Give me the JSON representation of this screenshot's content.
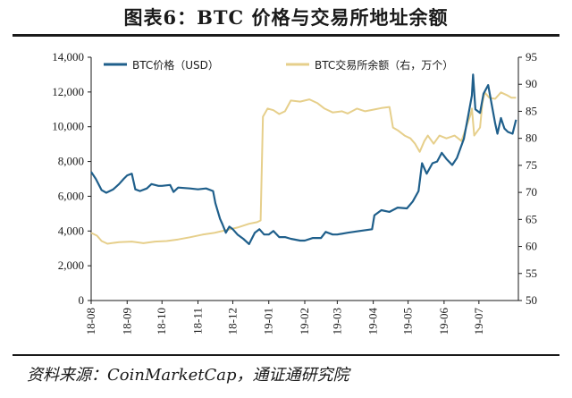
{
  "title": "图表6：BTC 价格与交易所地址余额",
  "source": "资料来源：CoinMarketCap，通证通研究院",
  "chart_data": {
    "type": "line",
    "x_categories": [
      "18-08",
      "18-09",
      "18-10",
      "18-11",
      "18-12",
      "19-01",
      "19-02",
      "19-03",
      "19-04",
      "19-05",
      "19-06",
      "19-07"
    ],
    "y_left": {
      "ylim": [
        0,
        14000
      ],
      "ticks": [
        0,
        2000,
        4000,
        6000,
        8000,
        10000,
        12000,
        14000
      ],
      "tick_labels": [
        "0",
        "2,000",
        "4,000",
        "6,000",
        "8,000",
        "10,000",
        "12,000",
        "14,000"
      ]
    },
    "y_right": {
      "ylim": [
        50,
        95
      ],
      "ticks": [
        50,
        55,
        60,
        65,
        70,
        75,
        80,
        85,
        90,
        95
      ],
      "tick_labels": [
        "50",
        "55",
        "60",
        "65",
        "70",
        "75",
        "80",
        "85",
        "90",
        "95"
      ]
    },
    "grid": false,
    "legend_position": "top",
    "series": [
      {
        "name": "BTC价格（USD）",
        "axis": "left",
        "color": "#1f5f8b",
        "points": [
          [
            "2018-08-01",
            7400
          ],
          [
            "2018-08-05",
            7000
          ],
          [
            "2018-08-10",
            6350
          ],
          [
            "2018-08-14",
            6200
          ],
          [
            "2018-08-20",
            6400
          ],
          [
            "2018-08-25",
            6700
          ],
          [
            "2018-08-29",
            7000
          ],
          [
            "2018-09-01",
            7200
          ],
          [
            "2018-09-05",
            7300
          ],
          [
            "2018-09-08",
            6400
          ],
          [
            "2018-09-12",
            6300
          ],
          [
            "2018-09-18",
            6450
          ],
          [
            "2018-09-22",
            6700
          ],
          [
            "2018-09-28",
            6600
          ],
          [
            "2018-10-01",
            6600
          ],
          [
            "2018-10-08",
            6650
          ],
          [
            "2018-10-11",
            6250
          ],
          [
            "2018-10-15",
            6500
          ],
          [
            "2018-10-25",
            6450
          ],
          [
            "2018-11-01",
            6400
          ],
          [
            "2018-11-08",
            6450
          ],
          [
            "2018-11-14",
            6300
          ],
          [
            "2018-11-16",
            5600
          ],
          [
            "2018-11-20",
            4700
          ],
          [
            "2018-11-22",
            4400
          ],
          [
            "2018-11-25",
            3900
          ],
          [
            "2018-11-28",
            4250
          ],
          [
            "2018-12-01",
            4100
          ],
          [
            "2018-12-05",
            3800
          ],
          [
            "2018-12-10",
            3550
          ],
          [
            "2018-12-15",
            3250
          ],
          [
            "2018-12-20",
            3900
          ],
          [
            "2018-12-24",
            4100
          ],
          [
            "2018-12-28",
            3800
          ],
          [
            "2019-01-01",
            3800
          ],
          [
            "2019-01-05",
            4000
          ],
          [
            "2019-01-10",
            3650
          ],
          [
            "2019-01-15",
            3650
          ],
          [
            "2019-01-20",
            3550
          ],
          [
            "2019-01-28",
            3450
          ],
          [
            "2019-02-01",
            3450
          ],
          [
            "2019-02-08",
            3600
          ],
          [
            "2019-02-15",
            3600
          ],
          [
            "2019-02-19",
            3950
          ],
          [
            "2019-02-25",
            3800
          ],
          [
            "2019-03-01",
            3800
          ],
          [
            "2019-03-10",
            3900
          ],
          [
            "2019-03-20",
            4000
          ],
          [
            "2019-03-31",
            4100
          ],
          [
            "2019-04-02",
            4900
          ],
          [
            "2019-04-08",
            5200
          ],
          [
            "2019-04-15",
            5100
          ],
          [
            "2019-04-22",
            5350
          ],
          [
            "2019-04-30",
            5300
          ],
          [
            "2019-05-05",
            5700
          ],
          [
            "2019-05-10",
            6300
          ],
          [
            "2019-05-13",
            7900
          ],
          [
            "2019-05-17",
            7300
          ],
          [
            "2019-05-22",
            7900
          ],
          [
            "2019-05-26",
            8000
          ],
          [
            "2019-05-30",
            8500
          ],
          [
            "2019-06-03",
            8150
          ],
          [
            "2019-06-08",
            7800
          ],
          [
            "2019-06-12",
            8200
          ],
          [
            "2019-06-18",
            9300
          ],
          [
            "2019-06-22",
            10700
          ],
          [
            "2019-06-25",
            11800
          ],
          [
            "2019-06-26",
            13000
          ],
          [
            "2019-06-28",
            11000
          ],
          [
            "2019-07-02",
            10800
          ],
          [
            "2019-07-05",
            11900
          ],
          [
            "2019-07-09",
            12400
          ],
          [
            "2019-07-12",
            11300
          ],
          [
            "2019-07-15",
            10200
          ],
          [
            "2019-07-17",
            9600
          ],
          [
            "2019-07-20",
            10500
          ],
          [
            "2019-07-23",
            9900
          ],
          [
            "2019-07-26",
            9700
          ],
          [
            "2019-07-30",
            9600
          ],
          [
            "2019-08-02",
            10400
          ]
        ]
      },
      {
        "name": "BTC交易所余额（右，万个）",
        "axis": "right",
        "color": "#e6cf8b",
        "points": [
          [
            "2018-08-01",
            62.5
          ],
          [
            "2018-08-06",
            62.0
          ],
          [
            "2018-08-10",
            61.0
          ],
          [
            "2018-08-15",
            60.5
          ],
          [
            "2018-08-25",
            60.8
          ],
          [
            "2018-09-05",
            60.9
          ],
          [
            "2018-09-15",
            60.6
          ],
          [
            "2018-09-25",
            60.9
          ],
          [
            "2018-10-05",
            61.0
          ],
          [
            "2018-10-15",
            61.3
          ],
          [
            "2018-10-25",
            61.7
          ],
          [
            "2018-11-05",
            62.2
          ],
          [
            "2018-11-15",
            62.5
          ],
          [
            "2018-11-25",
            63.0
          ],
          [
            "2018-12-05",
            63.5
          ],
          [
            "2018-12-15",
            64.2
          ],
          [
            "2018-12-22",
            64.5
          ],
          [
            "2018-12-25",
            64.8
          ],
          [
            "2018-12-27",
            84.0
          ],
          [
            "2018-12-31",
            85.5
          ],
          [
            "2019-01-05",
            85.2
          ],
          [
            "2019-01-10",
            84.5
          ],
          [
            "2019-01-15",
            85.0
          ],
          [
            "2019-01-20",
            87.0
          ],
          [
            "2019-01-28",
            86.8
          ],
          [
            "2019-02-05",
            87.2
          ],
          [
            "2019-02-12",
            86.5
          ],
          [
            "2019-02-18",
            85.5
          ],
          [
            "2019-02-25",
            84.8
          ],
          [
            "2019-03-05",
            85.0
          ],
          [
            "2019-03-10",
            84.6
          ],
          [
            "2019-03-18",
            85.5
          ],
          [
            "2019-03-25",
            85.0
          ],
          [
            "2019-04-01",
            85.3
          ],
          [
            "2019-04-08",
            85.6
          ],
          [
            "2019-04-15",
            85.8
          ],
          [
            "2019-04-18",
            82.0
          ],
          [
            "2019-04-22",
            81.5
          ],
          [
            "2019-04-28",
            80.5
          ],
          [
            "2019-05-03",
            80.0
          ],
          [
            "2019-05-07",
            79.0
          ],
          [
            "2019-05-11",
            77.5
          ],
          [
            "2019-05-15",
            79.5
          ],
          [
            "2019-05-18",
            80.5
          ],
          [
            "2019-05-23",
            79.0
          ],
          [
            "2019-05-28",
            80.5
          ],
          [
            "2019-06-03",
            80.0
          ],
          [
            "2019-06-10",
            80.5
          ],
          [
            "2019-06-16",
            79.5
          ],
          [
            "2019-06-20",
            82.0
          ],
          [
            "2019-06-24",
            84.5
          ],
          [
            "2019-06-25",
            85.5
          ],
          [
            "2019-06-27",
            80.5
          ],
          [
            "2019-07-02",
            82.0
          ],
          [
            "2019-07-04",
            86.5
          ],
          [
            "2019-07-06",
            88.5
          ],
          [
            "2019-07-10",
            87.5
          ],
          [
            "2019-07-15",
            87.3
          ],
          [
            "2019-07-20",
            88.5
          ],
          [
            "2019-07-25",
            88.0
          ],
          [
            "2019-07-29",
            87.5
          ],
          [
            "2019-08-02",
            87.5
          ]
        ]
      }
    ]
  }
}
